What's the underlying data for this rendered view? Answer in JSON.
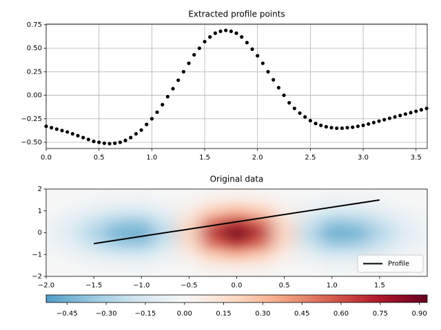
{
  "chart_data": [
    {
      "type": "scatter",
      "title": "Extracted profile points",
      "color": "#000000",
      "grid": true,
      "x": [
        0,
        0.05,
        0.1,
        0.15,
        0.2,
        0.25,
        0.3,
        0.35,
        0.4,
        0.45,
        0.5,
        0.55,
        0.6,
        0.65,
        0.7,
        0.75,
        0.8,
        0.85,
        0.9,
        0.95,
        1.0,
        1.05,
        1.1,
        1.15,
        1.2,
        1.25,
        1.3,
        1.35,
        1.4,
        1.45,
        1.5,
        1.55,
        1.6,
        1.65,
        1.7,
        1.75,
        1.8,
        1.85,
        1.9,
        1.95,
        2.0,
        2.05,
        2.1,
        2.15,
        2.2,
        2.25,
        2.3,
        2.35,
        2.4,
        2.45,
        2.5,
        2.55,
        2.6,
        2.65,
        2.7,
        2.75,
        2.8,
        2.85,
        2.9,
        2.95,
        3.0,
        3.05,
        3.1,
        3.15,
        3.2,
        3.25,
        3.3,
        3.35,
        3.4,
        3.45,
        3.5,
        3.55,
        3.6
      ],
      "values": [
        -0.33,
        -0.345,
        -0.36,
        -0.375,
        -0.39,
        -0.41,
        -0.43,
        -0.45,
        -0.47,
        -0.49,
        -0.5,
        -0.51,
        -0.515,
        -0.51,
        -0.5,
        -0.48,
        -0.45,
        -0.41,
        -0.37,
        -0.31,
        -0.25,
        -0.18,
        -0.1,
        -0.015,
        0.07,
        0.16,
        0.25,
        0.34,
        0.43,
        0.5,
        0.57,
        0.62,
        0.66,
        0.68,
        0.69,
        0.68,
        0.66,
        0.62,
        0.56,
        0.49,
        0.42,
        0.34,
        0.25,
        0.165,
        0.08,
        0,
        -0.08,
        -0.14,
        -0.19,
        -0.23,
        -0.27,
        -0.3,
        -0.32,
        -0.335,
        -0.345,
        -0.35,
        -0.35,
        -0.345,
        -0.34,
        -0.33,
        -0.32,
        -0.305,
        -0.29,
        -0.275,
        -0.26,
        -0.245,
        -0.23,
        -0.215,
        -0.2,
        -0.185,
        -0.17,
        -0.155,
        -0.14
      ],
      "xlim": [
        0,
        3.606
      ],
      "ylim": [
        -0.566,
        0.757
      ],
      "xticks": [
        {
          "value": 0,
          "label": "0.0"
        },
        0.5,
        {
          "value": 1,
          "label": "1.0"
        },
        1.5,
        {
          "value": 2,
          "label": "2.0"
        },
        2.5,
        {
          "value": 3,
          "label": "3.0"
        },
        3.5
      ],
      "yticks": [
        {
          "value": -0.5,
          "label": "−0.50"
        },
        {
          "value": -0.25,
          "label": "−0.25"
        },
        {
          "value": 0,
          "label": "0.00"
        },
        0.25,
        {
          "value": 0.5,
          "label": "0.50"
        },
        0.75
      ]
    },
    {
      "type": "contour",
      "title": "Original data",
      "grid": false,
      "legend": "lower right",
      "grid_x": [
        -2,
        -1.75,
        -1.5,
        -1.25,
        -1,
        -0.75,
        -0.5,
        -0.25,
        0,
        0.25,
        0.5,
        0.75,
        1,
        1.25,
        1.5,
        1.75,
        2
      ],
      "grid_y": [
        -2,
        -1.5,
        -1,
        -0.5,
        0,
        0.5,
        1,
        1.5,
        2
      ],
      "z": [
        [
          0,
          0,
          -0.01,
          -0.01,
          -0.01,
          0,
          0,
          0.01,
          0.02,
          0.01,
          0,
          0,
          -0.01,
          -0.01,
          -0.01,
          0,
          0
        ],
        [
          0,
          -0.01,
          -0.03,
          -0.04,
          -0.05,
          -0.02,
          0.02,
          0.07,
          0.09,
          0.07,
          0.02,
          -0.02,
          -0.05,
          -0.04,
          -0.03,
          -0.01,
          0
        ],
        [
          -0.01,
          -0.04,
          -0.1,
          -0.15,
          -0.16,
          -0.08,
          0.07,
          0.24,
          0.33,
          0.24,
          0.07,
          -0.08,
          -0.16,
          -0.15,
          -0.1,
          -0.04,
          -0.01
        ],
        [
          -0.03,
          -0.09,
          -0.21,
          -0.33,
          -0.35,
          -0.18,
          0.15,
          0.52,
          0.7,
          0.52,
          0.15,
          -0.18,
          -0.35,
          -0.33,
          -0.21,
          -0.09,
          -0.03
        ],
        [
          -0.04,
          -0.12,
          -0.28,
          -0.44,
          -0.46,
          -0.24,
          0.2,
          0.69,
          0.93,
          0.69,
          0.2,
          -0.24,
          -0.46,
          -0.44,
          -0.28,
          -0.12,
          -0.04
        ],
        [
          -0.03,
          -0.09,
          -0.21,
          -0.33,
          -0.35,
          -0.18,
          0.15,
          0.52,
          0.7,
          0.52,
          0.15,
          -0.18,
          -0.35,
          -0.33,
          -0.21,
          -0.09,
          -0.03
        ],
        [
          -0.01,
          -0.04,
          -0.1,
          -0.15,
          -0.16,
          -0.08,
          0.07,
          0.24,
          0.33,
          0.24,
          0.07,
          -0.08,
          -0.16,
          -0.15,
          -0.1,
          -0.04,
          -0.01
        ],
        [
          0,
          -0.01,
          -0.03,
          -0.04,
          -0.05,
          -0.02,
          0.02,
          0.07,
          0.09,
          0.07,
          0.02,
          -0.02,
          -0.05,
          -0.04,
          -0.03,
          -0.01,
          0
        ],
        [
          0,
          0,
          -0.01,
          -0.01,
          -0.01,
          0,
          0,
          0.01,
          0.02,
          0.01,
          0,
          0,
          -0.01,
          -0.01,
          -0.01,
          0,
          0
        ]
      ],
      "clim": [
        -0.53,
        0.93
      ],
      "cticks": [
        {
          "value": -0.45,
          "label": "−0.45"
        },
        {
          "value": -0.3,
          "label": "−0.30"
        },
        {
          "value": -0.15,
          "label": "−0.15"
        },
        {
          "value": 0,
          "label": "0.00"
        },
        0.15,
        {
          "value": 0.3,
          "label": "0.30"
        },
        0.45,
        {
          "value": 0.6,
          "label": "0.60"
        },
        0.75,
        {
          "value": 0.9,
          "label": "0.90"
        }
      ],
      "series": [
        {
          "name": "Profile",
          "color": "#000000",
          "x": [
            -1.5,
            1.5
          ],
          "values": [
            -0.5,
            1.5
          ]
        }
      ],
      "xlim": [
        -2,
        2
      ],
      "ylim": [
        -2,
        2
      ],
      "xticks": [
        {
          "value": -2,
          "label": "−2.0"
        },
        {
          "value": -1.5,
          "label": "−1.5"
        },
        {
          "value": -1,
          "label": "−1.0"
        },
        {
          "value": -0.5,
          "label": "−0.5"
        },
        {
          "value": 0,
          "label": "0.0"
        },
        0.5,
        {
          "value": 1,
          "label": "1.0"
        },
        1.5
      ],
      "yticks": [
        {
          "value": -2,
          "label": "−2"
        },
        {
          "value": -1,
          "label": "−1"
        },
        0,
        1,
        2
      ]
    }
  ]
}
